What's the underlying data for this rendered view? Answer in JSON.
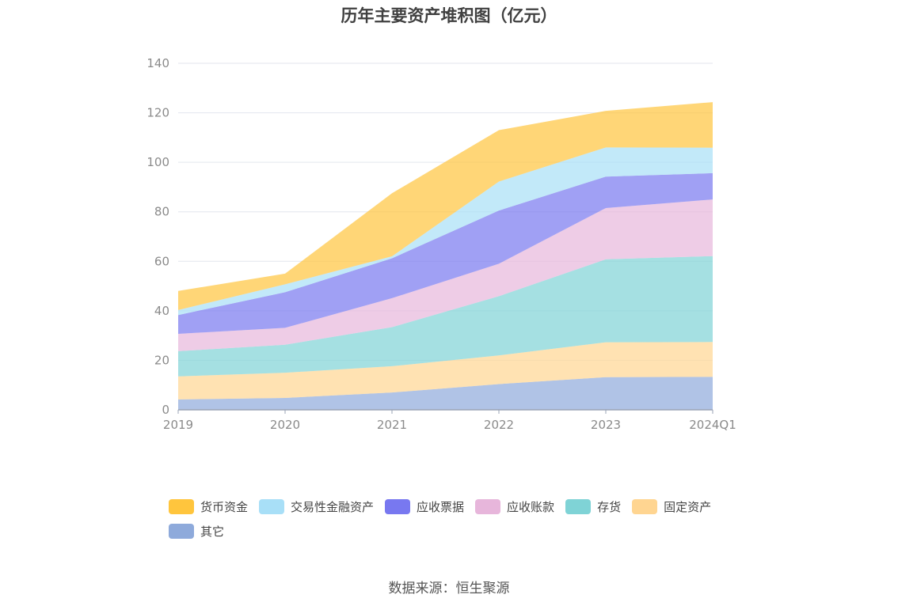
{
  "chart_data": {
    "type": "area",
    "stacked": true,
    "title": "历年主要资产堆积图（亿元）",
    "categories": [
      "2019",
      "2020",
      "2021",
      "2022",
      "2023",
      "2024Q1"
    ],
    "ylim": [
      0,
      140
    ],
    "yticks": [
      0,
      20,
      40,
      60,
      80,
      100,
      120,
      140
    ],
    "grid": true,
    "legend_position": "bottom",
    "series": [
      {
        "name": "其它",
        "color": "#8EAADB",
        "values": [
          4.2,
          4.8,
          7.0,
          10.4,
          13.2,
          13.3
        ]
      },
      {
        "name": "固定资产",
        "color": "#FFD591",
        "values": [
          9.3,
          10.2,
          10.6,
          11.6,
          14.1,
          14.1
        ]
      },
      {
        "name": "存货",
        "color": "#7FD3D6",
        "values": [
          10.2,
          11.3,
          15.8,
          23.9,
          33.5,
          34.7
        ]
      },
      {
        "name": "应收账款",
        "color": "#E7B6DB",
        "values": [
          7.0,
          6.8,
          11.7,
          13.1,
          20.7,
          22.9
        ]
      },
      {
        "name": "应收票据",
        "color": "#7878F0",
        "values": [
          7.6,
          14.4,
          16.1,
          21.5,
          12.7,
          10.6
        ]
      },
      {
        "name": "交易性金融资产",
        "color": "#A8DFF7",
        "values": [
          2.0,
          3.2,
          0.8,
          11.7,
          11.8,
          10.3
        ]
      },
      {
        "name": "货币资金",
        "color": "#FFC53D",
        "values": [
          7.7,
          4.3,
          25.5,
          20.8,
          14.8,
          18.4
        ]
      }
    ]
  },
  "source": "数据来源：恒生聚源"
}
